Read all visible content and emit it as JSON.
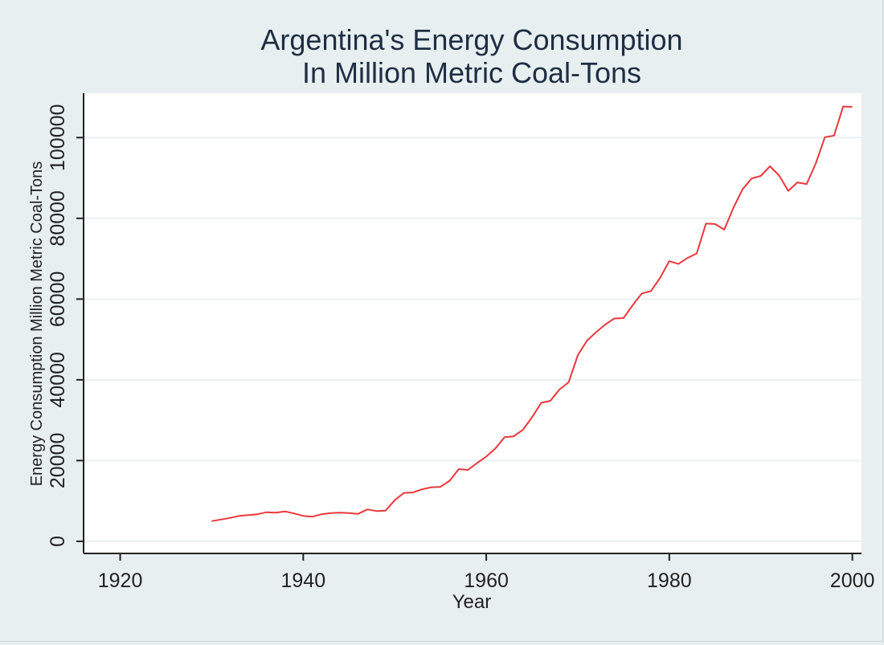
{
  "chart_data": {
    "type": "line",
    "title": [
      "Argentina's Energy Consumption",
      "In Million Metric Coal-Tons"
    ],
    "xlabel": "Year",
    "ylabel": "Energy Consumption Million Metric Coal-Tons",
    "xlim": [
      1916,
      2001
    ],
    "ylim": [
      -3000,
      111000
    ],
    "xticks": [
      1920,
      1940,
      1960,
      1980,
      2000
    ],
    "yticks": [
      0,
      20000,
      40000,
      60000,
      80000,
      100000
    ],
    "grid": "horizontal",
    "legend": "none",
    "colors": {
      "line": "#e8383c",
      "background": "#e8eff1",
      "plot_area": "#ffffff",
      "grid": "#eaf0f2",
      "axis": "#222222",
      "title": "#1e2e44"
    },
    "series": [
      {
        "x": [
          1930,
          1931,
          1932,
          1933,
          1934,
          1935,
          1936,
          1937,
          1938,
          1939,
          1940,
          1941,
          1942,
          1943,
          1944,
          1945,
          1946,
          1947,
          1948,
          1949,
          1950,
          1951,
          1952,
          1953,
          1954,
          1955,
          1956,
          1957,
          1958,
          1959,
          1960,
          1961,
          1962,
          1963,
          1964,
          1965,
          1966,
          1967,
          1968,
          1969,
          1970,
          1971,
          1972,
          1973,
          1974,
          1975,
          1976,
          1977,
          1978,
          1979,
          1980,
          1981,
          1982,
          1983,
          1984,
          1985,
          1986,
          1987,
          1988,
          1989,
          1990,
          1991,
          1992,
          1993,
          1994,
          1995,
          1996,
          1997,
          1998,
          1999,
          2000
        ],
        "values": [
          5000,
          5400,
          5800,
          6300,
          6500,
          6700,
          7200,
          7100,
          7400,
          6900,
          6300,
          6100,
          6700,
          7000,
          7100,
          7000,
          6800,
          7900,
          7500,
          7600,
          10200,
          12000,
          12100,
          12900,
          13400,
          13500,
          15000,
          17900,
          17700,
          19400,
          21000,
          23000,
          25800,
          26000,
          27600,
          30700,
          34300,
          34800,
          37600,
          39400,
          46100,
          49700,
          51800,
          53700,
          55200,
          55300,
          58500,
          61400,
          62000,
          65300,
          69400,
          68700,
          70200,
          71300,
          78700,
          78600,
          77200,
          82600,
          87200,
          89900,
          90500,
          92900,
          90600,
          86800,
          88900,
          88500,
          93600,
          100100,
          100500,
          107700,
          107600
        ]
      }
    ]
  }
}
